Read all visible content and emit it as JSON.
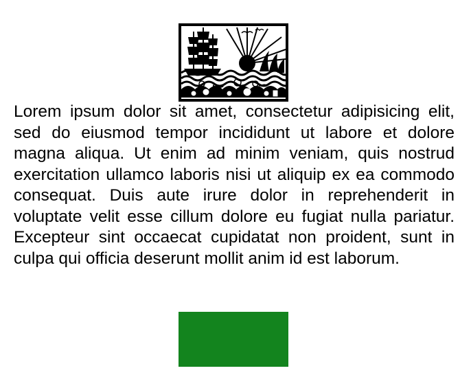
{
  "illustration": {
    "icon": "ship-seascape-papercut-icon",
    "frame_color": "#000000",
    "ink_color": "#000000",
    "paper_color": "#ffffff"
  },
  "paragraph": {
    "text": "Lorem ipsum dolor sit amet, consectetur adipisicing elit, sed do eiusmod tempor incididunt ut labore et dolore magna aliqua. Ut enim ad minim veniam, quis nostrud exercitation ullamco laboris nisi ut aliquip ex ea commodo consequat. Duis aute irure dolor in reprehenderit in voluptate velit esse cillum dolore eu fugiat nulla pariatur. Excepteur sint occaecat cu­pidatat non proident, sunt in culpa qui officia deserunt mollit anim id est laborum."
  },
  "block": {
    "color": "#13841e"
  }
}
